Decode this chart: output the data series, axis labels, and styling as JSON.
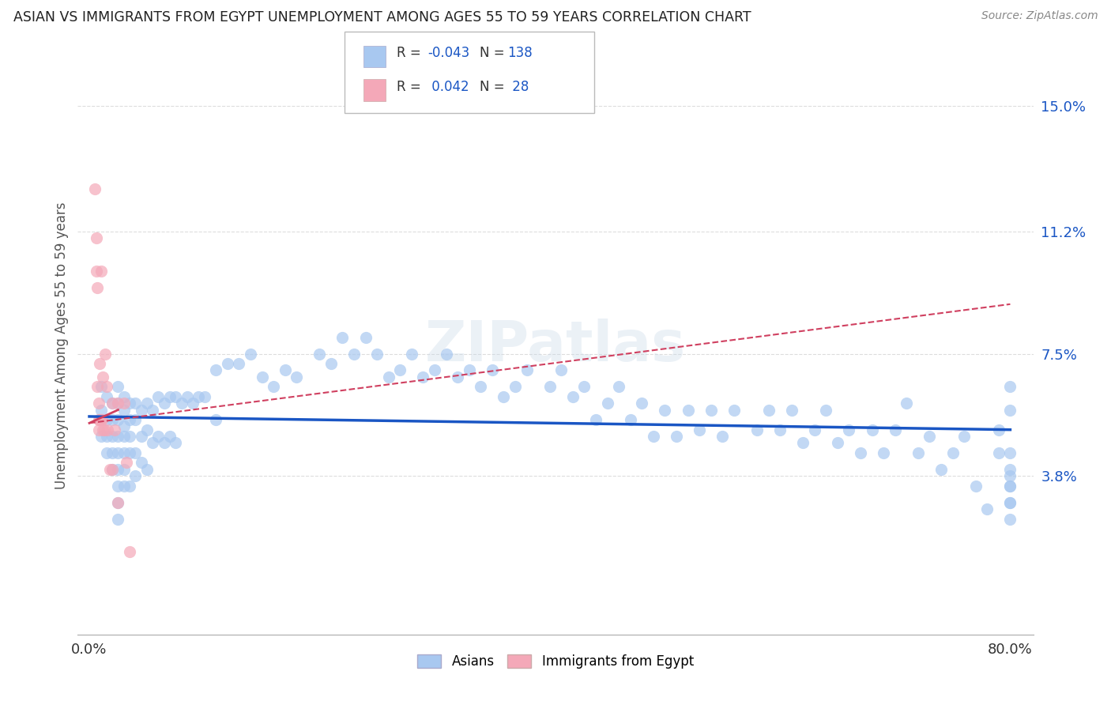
{
  "title": "ASIAN VS IMMIGRANTS FROM EGYPT UNEMPLOYMENT AMONG AGES 55 TO 59 YEARS CORRELATION CHART",
  "source": "Source: ZipAtlas.com",
  "ylabel": "Unemployment Among Ages 55 to 59 years",
  "xlim": [
    -0.01,
    0.82
  ],
  "ylim": [
    -0.01,
    0.165
  ],
  "ytick_vals": [
    0.038,
    0.075,
    0.112,
    0.15
  ],
  "ytick_labels": [
    "3.8%",
    "7.5%",
    "11.2%",
    "15.0%"
  ],
  "xtick_vals": [
    0.0,
    0.1,
    0.2,
    0.3,
    0.4,
    0.5,
    0.6,
    0.7,
    0.8
  ],
  "xtick_labels": [
    "0.0%",
    "",
    "",
    "",
    "",
    "",
    "",
    "",
    "80.0%"
  ],
  "asian_color": "#a8c8f0",
  "egypt_color": "#f4a8b8",
  "asian_line_color": "#1a56c4",
  "egypt_line_color": "#d04060",
  "value_color": "#1a56c4",
  "watermark": "ZIPatlas",
  "asian_line": [
    0.0,
    0.056,
    0.8,
    0.052
  ],
  "egypt_line": [
    0.0,
    0.054,
    0.8,
    0.09
  ],
  "asian_x": [
    0.01,
    0.01,
    0.01,
    0.015,
    0.015,
    0.015,
    0.015,
    0.02,
    0.02,
    0.02,
    0.02,
    0.02,
    0.025,
    0.025,
    0.025,
    0.025,
    0.025,
    0.025,
    0.025,
    0.025,
    0.025,
    0.03,
    0.03,
    0.03,
    0.03,
    0.03,
    0.03,
    0.03,
    0.035,
    0.035,
    0.035,
    0.035,
    0.035,
    0.04,
    0.04,
    0.04,
    0.04,
    0.045,
    0.045,
    0.045,
    0.05,
    0.05,
    0.05,
    0.055,
    0.055,
    0.06,
    0.06,
    0.065,
    0.065,
    0.07,
    0.07,
    0.075,
    0.075,
    0.08,
    0.085,
    0.09,
    0.095,
    0.1,
    0.11,
    0.11,
    0.12,
    0.13,
    0.14,
    0.15,
    0.16,
    0.17,
    0.18,
    0.2,
    0.21,
    0.22,
    0.23,
    0.24,
    0.25,
    0.26,
    0.27,
    0.28,
    0.29,
    0.3,
    0.31,
    0.32,
    0.33,
    0.34,
    0.35,
    0.36,
    0.37,
    0.38,
    0.4,
    0.41,
    0.42,
    0.43,
    0.44,
    0.45,
    0.46,
    0.47,
    0.48,
    0.49,
    0.5,
    0.51,
    0.52,
    0.53,
    0.54,
    0.55,
    0.56,
    0.58,
    0.59,
    0.6,
    0.61,
    0.62,
    0.63,
    0.64,
    0.65,
    0.66,
    0.67,
    0.68,
    0.69,
    0.7,
    0.71,
    0.72,
    0.73,
    0.74,
    0.75,
    0.76,
    0.77,
    0.78,
    0.79,
    0.79,
    0.8,
    0.8,
    0.8,
    0.8,
    0.8,
    0.8,
    0.8,
    0.8,
    0.8,
    0.8
  ],
  "asian_y": [
    0.065,
    0.058,
    0.05,
    0.062,
    0.055,
    0.05,
    0.045,
    0.06,
    0.055,
    0.05,
    0.045,
    0.04,
    0.065,
    0.06,
    0.055,
    0.05,
    0.045,
    0.04,
    0.035,
    0.03,
    0.025,
    0.062,
    0.058,
    0.053,
    0.05,
    0.045,
    0.04,
    0.035,
    0.06,
    0.055,
    0.05,
    0.045,
    0.035,
    0.06,
    0.055,
    0.045,
    0.038,
    0.058,
    0.05,
    0.042,
    0.06,
    0.052,
    0.04,
    0.058,
    0.048,
    0.062,
    0.05,
    0.06,
    0.048,
    0.062,
    0.05,
    0.062,
    0.048,
    0.06,
    0.062,
    0.06,
    0.062,
    0.062,
    0.07,
    0.055,
    0.072,
    0.072,
    0.075,
    0.068,
    0.065,
    0.07,
    0.068,
    0.075,
    0.072,
    0.08,
    0.075,
    0.08,
    0.075,
    0.068,
    0.07,
    0.075,
    0.068,
    0.07,
    0.075,
    0.068,
    0.07,
    0.065,
    0.07,
    0.062,
    0.065,
    0.07,
    0.065,
    0.07,
    0.062,
    0.065,
    0.055,
    0.06,
    0.065,
    0.055,
    0.06,
    0.05,
    0.058,
    0.05,
    0.058,
    0.052,
    0.058,
    0.05,
    0.058,
    0.052,
    0.058,
    0.052,
    0.058,
    0.048,
    0.052,
    0.058,
    0.048,
    0.052,
    0.045,
    0.052,
    0.045,
    0.052,
    0.06,
    0.045,
    0.05,
    0.04,
    0.045,
    0.05,
    0.035,
    0.028,
    0.052,
    0.045,
    0.038,
    0.03,
    0.065,
    0.04,
    0.035,
    0.03,
    0.025,
    0.058,
    0.045,
    0.035
  ],
  "egypt_x": [
    0.005,
    0.006,
    0.006,
    0.007,
    0.007,
    0.008,
    0.008,
    0.008,
    0.009,
    0.009,
    0.01,
    0.01,
    0.011,
    0.012,
    0.012,
    0.013,
    0.014,
    0.015,
    0.016,
    0.018,
    0.02,
    0.02,
    0.022,
    0.025,
    0.025,
    0.03,
    0.032,
    0.035
  ],
  "egypt_y": [
    0.125,
    0.11,
    0.1,
    0.095,
    0.065,
    0.06,
    0.055,
    0.052,
    0.072,
    0.055,
    0.1,
    0.055,
    0.055,
    0.068,
    0.052,
    0.052,
    0.075,
    0.065,
    0.052,
    0.04,
    0.06,
    0.04,
    0.052,
    0.06,
    0.03,
    0.06,
    0.042,
    0.015
  ]
}
